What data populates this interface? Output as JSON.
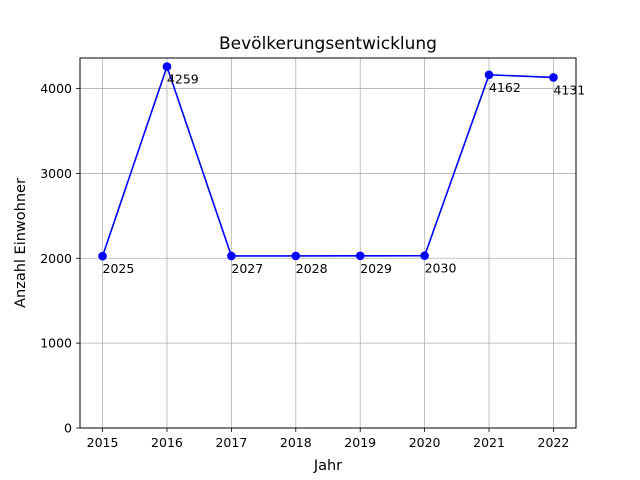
{
  "chart_data": {
    "type": "line",
    "title": "Bevölkerungsentwicklung",
    "xlabel": "Jahr",
    "ylabel": "Anzahl Einwohner",
    "x": [
      2015,
      2016,
      2017,
      2018,
      2019,
      2020,
      2021,
      2022
    ],
    "series": [
      {
        "values": [
          2025,
          4259,
          2027,
          2028,
          2029,
          2030,
          4162,
          4131
        ],
        "color": "#0000ff",
        "marker": "circle"
      }
    ],
    "data_labels": [
      "2025",
      "4259",
      "2027",
      "2028",
      "2029",
      "2030",
      "4162",
      "4131"
    ],
    "xticks": [
      "2015",
      "2016",
      "2017",
      "2018",
      "2019",
      "2020",
      "2021",
      "2022"
    ],
    "yticks": [
      0,
      1000,
      2000,
      3000,
      4000
    ],
    "ytick_labels": [
      "0",
      "1000",
      "2000",
      "3000",
      "4000"
    ],
    "ylim": [
      0,
      4360
    ],
    "xlim": [
      2014.65,
      2022.35
    ],
    "grid": true
  }
}
